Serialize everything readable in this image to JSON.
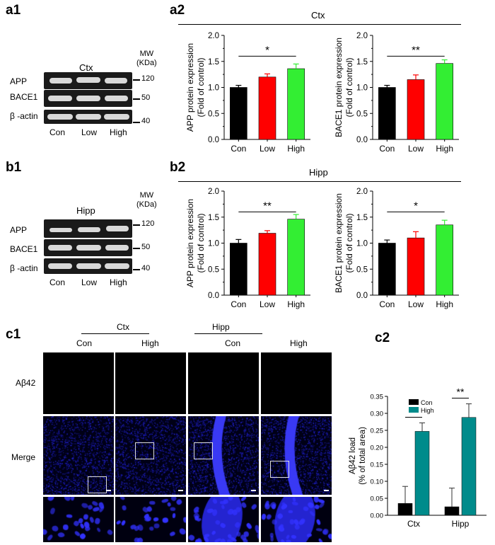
{
  "panels": {
    "a1": "a1",
    "a2": "a2",
    "b1": "b1",
    "b2": "b2",
    "c1": "c1",
    "c2": "c2"
  },
  "westerns": [
    {
      "id": "ctx",
      "region": "Ctx",
      "mw_header": [
        "MW",
        "(KDa)"
      ],
      "rows": [
        {
          "label": "APP",
          "mw": "120"
        },
        {
          "label": "BACE1",
          "mw": "50"
        },
        {
          "label": "β -actin",
          "mw": "40"
        }
      ],
      "lanes": [
        "Con",
        "Low",
        "High"
      ]
    },
    {
      "id": "hipp",
      "region": "Hipp",
      "mw_header": [
        "MW",
        "(KDa)"
      ],
      "rows": [
        {
          "label": "APP",
          "mw": "120"
        },
        {
          "label": "BACE1",
          "mw": "50"
        },
        {
          "label": "β -actin",
          "mw": "40"
        }
      ],
      "lanes": [
        "Con",
        "Low",
        "High"
      ]
    }
  ],
  "group_titles": {
    "a2": "Ctx",
    "b2": "Hipp"
  },
  "colors": {
    "con": "#000000",
    "low": "#ff0000",
    "high": "#33ee33",
    "high_c2": "#008b8b",
    "nuclei": "#1a1aff"
  },
  "chart_data": [
    {
      "type": "bar",
      "panel": "a2",
      "region": "Ctx",
      "categories": [
        "Con",
        "Low",
        "High"
      ],
      "values": [
        1.0,
        1.2,
        1.36
      ],
      "errors": [
        0.04,
        0.06,
        0.09
      ],
      "ylabel": [
        "APP protein expression",
        "(Fold of control)"
      ],
      "ylim": [
        0,
        2.0
      ],
      "yticks": [
        "0.0",
        "0.5",
        "1.0",
        "1.5",
        "2.0"
      ],
      "significance": {
        "label": "*",
        "from": 0,
        "to": 2,
        "y": 1.6
      }
    },
    {
      "type": "bar",
      "panel": "a2",
      "region": "Ctx",
      "categories": [
        "Con",
        "Low",
        "High"
      ],
      "values": [
        1.0,
        1.15,
        1.46
      ],
      "errors": [
        0.04,
        0.09,
        0.07
      ],
      "ylabel": [
        "BACE1 protein expression",
        "(Fold of control)"
      ],
      "ylim": [
        0,
        2.0
      ],
      "yticks": [
        "0.0",
        "0.5",
        "1.0",
        "1.5",
        "2.0"
      ],
      "significance": {
        "label": "**",
        "from": 0,
        "to": 2,
        "y": 1.6
      }
    },
    {
      "type": "bar",
      "panel": "b2",
      "region": "Hipp",
      "categories": [
        "Con",
        "Low",
        "High"
      ],
      "values": [
        1.0,
        1.19,
        1.46
      ],
      "errors": [
        0.07,
        0.05,
        0.09
      ],
      "ylabel": [
        "APP protein expression",
        "(Fold of control)"
      ],
      "ylim": [
        0,
        2.0
      ],
      "yticks": [
        "0.0",
        "0.5",
        "1.0",
        "1.5",
        "2.0"
      ],
      "significance": {
        "label": "**",
        "from": 0,
        "to": 2,
        "y": 1.6
      }
    },
    {
      "type": "bar",
      "panel": "b2",
      "region": "Hipp",
      "categories": [
        "Con",
        "Low",
        "High"
      ],
      "values": [
        1.0,
        1.1,
        1.35
      ],
      "errors": [
        0.06,
        0.12,
        0.09
      ],
      "ylabel": [
        "BACE1 protein expression",
        "(Fold of control)"
      ],
      "ylim": [
        0,
        2.0
      ],
      "yticks": [
        "0.0",
        "0.5",
        "1.0",
        "1.5",
        "2.0"
      ],
      "significance": {
        "label": "*",
        "from": 0,
        "to": 2,
        "y": 1.6
      }
    },
    {
      "type": "bar",
      "panel": "c2",
      "categories": [
        "Ctx",
        "Hipp"
      ],
      "series": [
        {
          "name": "Con",
          "values": [
            0.035,
            0.025
          ],
          "errors": [
            0.05,
            0.055
          ]
        },
        {
          "name": "High",
          "values": [
            0.247,
            0.288
          ],
          "errors": [
            0.025,
            0.04
          ]
        }
      ],
      "ylabel": [
        "Aβ42 load",
        "(% of total area)"
      ],
      "ylim": [
        0,
        0.35
      ],
      "yticks": [
        "0.00",
        "0.05",
        "0.10",
        "0.15",
        "0.20",
        "0.25",
        "0.30",
        "0.35"
      ],
      "legend": "top-left",
      "significance": [
        {
          "label": "**",
          "category": 0
        },
        {
          "label": "**",
          "category": 1
        }
      ]
    }
  ],
  "imaging": {
    "groups": [
      {
        "region": "Ctx",
        "conditions": [
          "Con",
          "High"
        ]
      },
      {
        "region": "Hipp",
        "conditions": [
          "Con",
          "High"
        ]
      }
    ],
    "row_labels": {
      "abeta": "Aβ42",
      "merge": "Merge"
    }
  }
}
